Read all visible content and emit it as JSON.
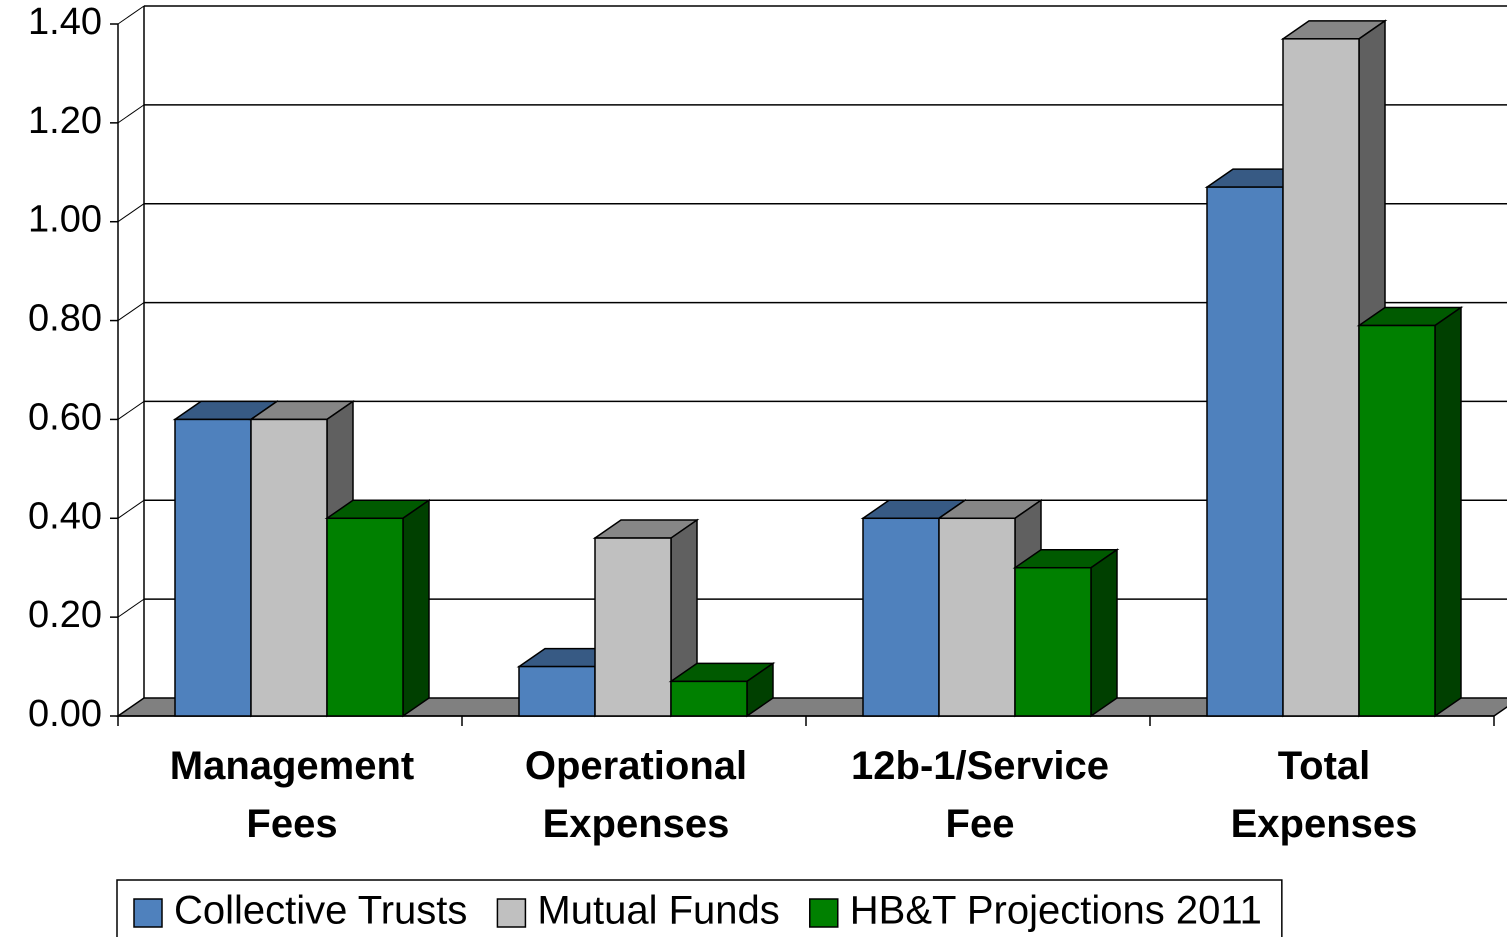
{
  "chart_data": {
    "type": "bar3d",
    "categories": [
      "Management Fees",
      "Operational Expenses",
      "12b-1/Service Fee",
      "Total Expenses"
    ],
    "series": [
      {
        "name": "Collective Trusts",
        "color": "#4f81bd",
        "values": [
          0.6,
          0.1,
          0.4,
          1.07
        ]
      },
      {
        "name": "Mutual Funds",
        "color": "#c0c0c0",
        "values": [
          0.6,
          0.36,
          0.4,
          1.37
        ]
      },
      {
        "name": "HB&T Projections 2011",
        "color": "#008000",
        "values": [
          0.4,
          0.07,
          0.3,
          0.79
        ]
      }
    ],
    "ylim": [
      0,
      1.4
    ],
    "yticks": [
      {
        "value": 0,
        "label": "0.00"
      },
      {
        "value": 0.2,
        "label": "0.20"
      },
      {
        "value": 0.4,
        "label": "0.40"
      },
      {
        "value": 0.6,
        "label": "0.60"
      },
      {
        "value": 0.8,
        "label": "0.80"
      },
      {
        "value": 1.0,
        "label": "1.00"
      },
      {
        "value": 1.2,
        "label": "1.20"
      },
      {
        "value": 1.4,
        "label": "1.40"
      }
    ],
    "grid": true,
    "legend": "bottom"
  }
}
